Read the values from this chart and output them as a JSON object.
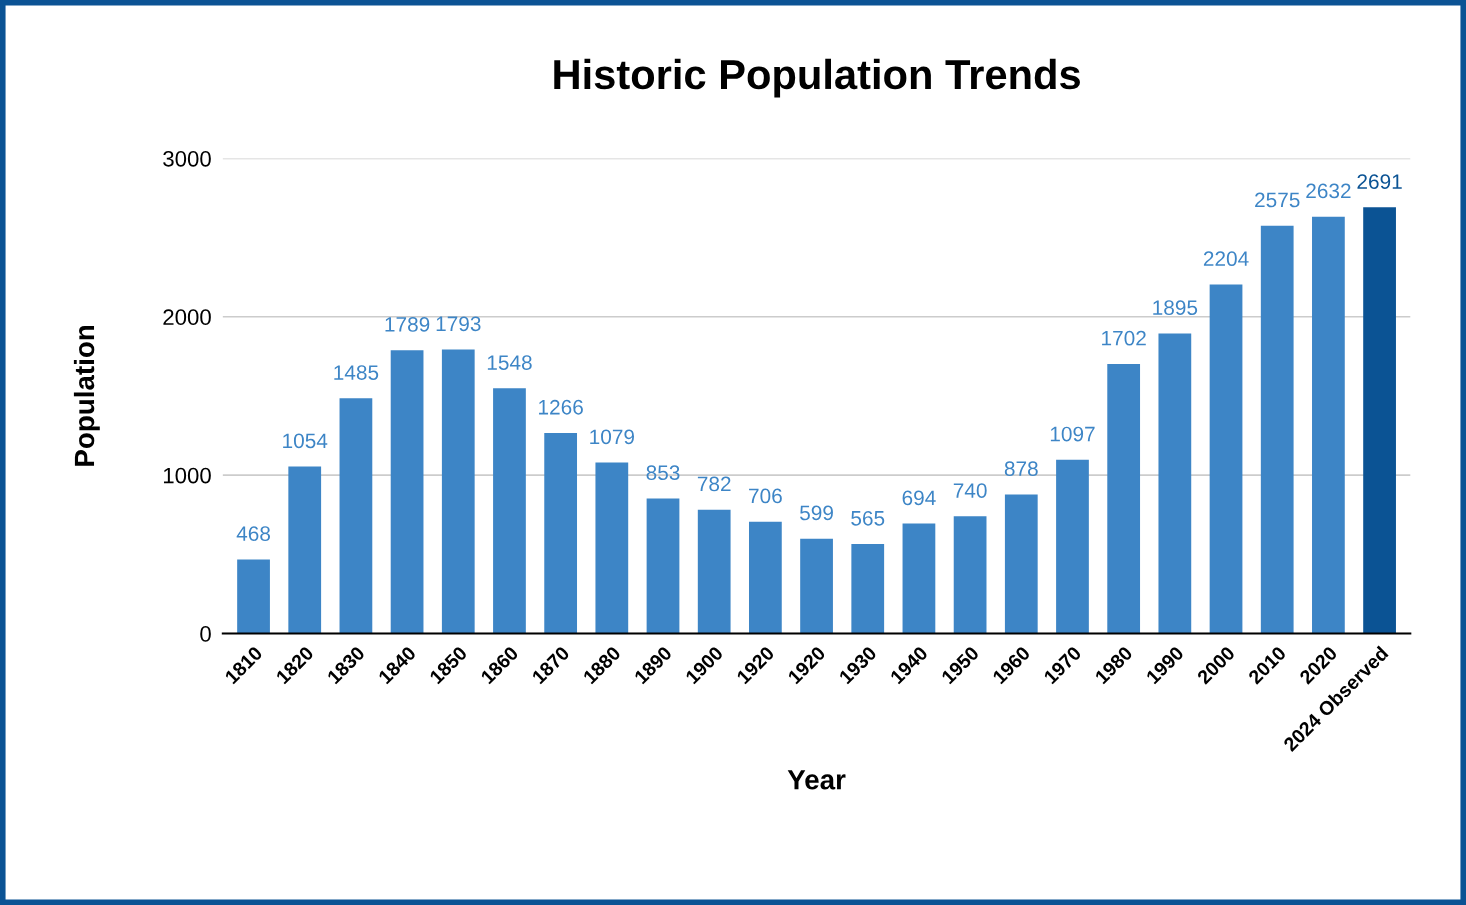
{
  "chart_data": {
    "type": "bar",
    "title": "Historic Population Trends",
    "xlabel": "Year",
    "ylabel": "Population",
    "categories": [
      "1810",
      "1820",
      "1830",
      "1840",
      "1850",
      "1860",
      "1870",
      "1880",
      "1890",
      "1900",
      "1920",
      "1920",
      "1930",
      "1940",
      "1950",
      "1960",
      "1970",
      "1980",
      "1990",
      "2000",
      "2010",
      "2020",
      "2024 Observed"
    ],
    "values": [
      468,
      1054,
      1485,
      1789,
      1793,
      1548,
      1266,
      1079,
      853,
      782,
      706,
      599,
      565,
      694,
      740,
      878,
      1097,
      1702,
      1895,
      2204,
      2575,
      2632,
      2691
    ],
    "colors": [
      "#3d85c6",
      "#3d85c6",
      "#3d85c6",
      "#3d85c6",
      "#3d85c6",
      "#3d85c6",
      "#3d85c6",
      "#3d85c6",
      "#3d85c6",
      "#3d85c6",
      "#3d85c6",
      "#3d85c6",
      "#3d85c6",
      "#3d85c6",
      "#3d85c6",
      "#3d85c6",
      "#3d85c6",
      "#3d85c6",
      "#3d85c6",
      "#3d85c6",
      "#3d85c6",
      "#3d85c6",
      "#0b5394"
    ],
    "ylim": [
      0,
      3000
    ],
    "yticks": [
      0,
      1000,
      2000,
      3000
    ],
    "grid": "y",
    "data_labels": true,
    "legend": false
  }
}
